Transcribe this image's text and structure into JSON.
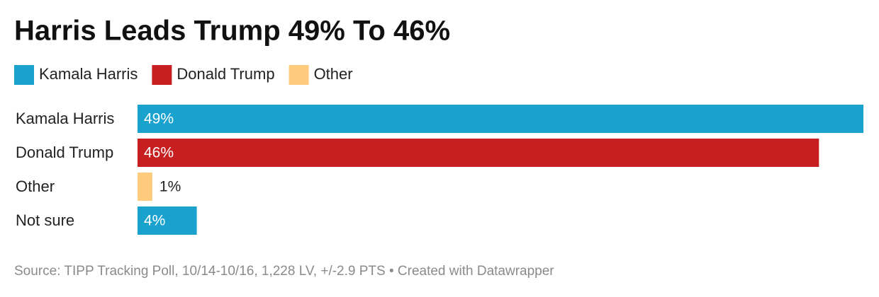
{
  "chart_data": {
    "type": "bar",
    "orientation": "horizontal",
    "title": "Harris Leads Trump 49% To 46%",
    "legend": [
      {
        "name": "Kamala Harris",
        "color": "#1aa2cf"
      },
      {
        "name": "Donald Trump",
        "color": "#c71e20"
      },
      {
        "name": "Other",
        "color": "#fdca7e"
      }
    ],
    "categories": [
      "Kamala Harris",
      "Donald Trump",
      "Other",
      "Not sure"
    ],
    "values": [
      49,
      46,
      1,
      4
    ],
    "value_labels": [
      "49%",
      "46%",
      "1%",
      "4%"
    ],
    "colors": [
      "#1aa2cf",
      "#c71e20",
      "#fdca7e",
      "#1aa2cf"
    ],
    "source": "Source: TIPP Tracking Poll, 10/14-10/16, 1,228 LV, +/-2.9 PTS • Created with Datawrapper"
  }
}
